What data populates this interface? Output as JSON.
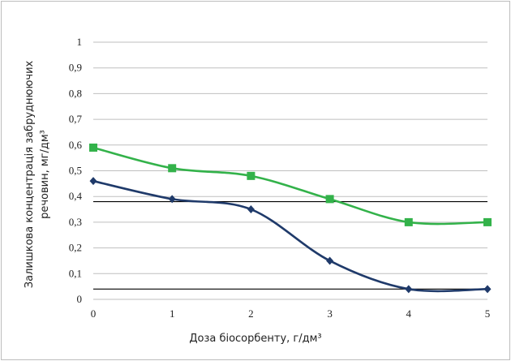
{
  "chart_data": {
    "type": "line",
    "xlabel": "Доза біосорбенту, г/дм³",
    "ylabel_line1": "Залишкова концентрація забруднюючих",
    "ylabel_line2": "речовин, мг/дм³",
    "ylim": [
      0,
      1
    ],
    "y_ticks": [
      "0",
      "0,1",
      "0,2",
      "0,3",
      "0,4",
      "0,5",
      "0,6",
      "0,7",
      "0,8",
      "0,9",
      "1"
    ],
    "x_ticks": [
      "0",
      "1",
      "2",
      "3",
      "4",
      "5"
    ],
    "x": [
      0,
      1,
      2,
      3,
      4,
      5
    ],
    "grid": true,
    "legend": "none",
    "series": [
      {
        "values": [
          0.59,
          0.51,
          0.48,
          0.39,
          0.3,
          0.3
        ],
        "color": "#33b24a",
        "marker": "square"
      },
      {
        "values": [
          0.46,
          0.39,
          0.35,
          0.15,
          0.04,
          0.04
        ],
        "color": "#1f3a6a",
        "marker": "diamond"
      }
    ],
    "reference_lines": [
      {
        "y": 0.38,
        "color": "#000000"
      },
      {
        "y": 0.04,
        "color": "#000000"
      }
    ]
  }
}
